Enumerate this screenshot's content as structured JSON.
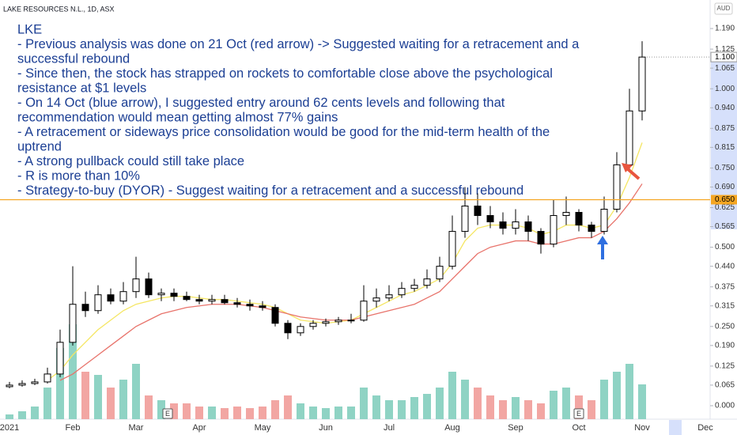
{
  "chart_data": {
    "type": "candlestick",
    "title": "LAKE RESOURCES N.L., 1D, ASX",
    "currency": "AUD",
    "annotation_lines": [
      "LKE",
      "- Previous analysis was done on 21 Oct (red arrow) -> Suggested waiting for a retracement and a",
      "successful rebound",
      "- Since then, the stock has strapped on rockets to comfortable close above the psychological",
      "resistance at $1 levels",
      "- On 14 Oct (blue arrow), I suggested entry around 62 cents levels and following that",
      "recommendation would mean getting almost 77% gains",
      "- A retracement or sideways price consolidation would be good for the mid-term health of the",
      "uptrend",
      "- A strong pullback could still take place",
      "- R is more than 10%",
      "- Strategy-to-buy (DYOR) - Suggest waiting for a retracement and a successful rebound"
    ],
    "categories": [
      "2021",
      null,
      null,
      null,
      null,
      "Feb",
      null,
      null,
      null,
      null,
      "Mar",
      null,
      null,
      null,
      null,
      "Apr",
      null,
      null,
      null,
      null,
      "May",
      null,
      null,
      null,
      null,
      "Jun",
      null,
      null,
      null,
      null,
      "Jul",
      null,
      null,
      null,
      null,
      "Aug",
      null,
      null,
      null,
      null,
      "Sep",
      null,
      null,
      null,
      null,
      "Oct",
      null,
      null,
      null,
      null,
      "Nov",
      null,
      null,
      null,
      null,
      "Dec"
    ],
    "open": [
      0.06,
      0.065,
      0.07,
      0.075,
      0.1,
      0.2,
      0.32,
      0.3,
      0.35,
      0.33,
      0.36,
      0.4,
      0.35,
      0.355,
      0.345,
      0.335,
      0.33,
      0.335,
      0.325,
      0.32,
      0.315,
      0.31,
      0.26,
      0.23,
      0.25,
      0.26,
      0.265,
      0.27,
      0.27,
      0.33,
      0.34,
      0.35,
      0.37,
      0.38,
      0.4,
      0.44,
      0.55,
      0.63,
      0.6,
      0.58,
      0.56,
      0.58,
      0.55,
      0.51,
      0.6,
      0.61,
      0.57,
      0.55,
      0.62,
      0.76,
      0.93,
      null,
      null,
      null,
      null,
      null
    ],
    "high": [
      0.075,
      0.08,
      0.085,
      0.12,
      0.24,
      0.44,
      0.36,
      0.38,
      0.37,
      0.39,
      0.47,
      0.42,
      0.37,
      0.37,
      0.36,
      0.35,
      0.35,
      0.35,
      0.34,
      0.335,
      0.33,
      0.32,
      0.27,
      0.26,
      0.27,
      0.275,
      0.28,
      0.29,
      0.38,
      0.37,
      0.38,
      0.39,
      0.4,
      0.43,
      0.47,
      0.6,
      0.69,
      0.67,
      0.63,
      0.61,
      0.62,
      0.6,
      0.56,
      0.65,
      0.66,
      0.62,
      0.58,
      0.66,
      0.8,
      1.0,
      1.15,
      null,
      null,
      null,
      null,
      null
    ],
    "low": [
      0.055,
      0.06,
      0.065,
      0.07,
      0.09,
      0.19,
      0.28,
      0.29,
      0.32,
      0.32,
      0.34,
      0.34,
      0.33,
      0.33,
      0.33,
      0.32,
      0.32,
      0.32,
      0.31,
      0.3,
      0.3,
      0.25,
      0.21,
      0.22,
      0.24,
      0.25,
      0.255,
      0.26,
      0.265,
      0.31,
      0.33,
      0.34,
      0.36,
      0.37,
      0.39,
      0.43,
      0.53,
      0.57,
      0.56,
      0.54,
      0.54,
      0.52,
      0.48,
      0.5,
      0.57,
      0.55,
      0.53,
      0.54,
      0.61,
      0.74,
      0.9,
      null,
      null,
      null,
      null,
      null
    ],
    "close": [
      0.065,
      0.07,
      0.075,
      0.1,
      0.2,
      0.32,
      0.3,
      0.35,
      0.33,
      0.36,
      0.4,
      0.35,
      0.355,
      0.345,
      0.335,
      0.33,
      0.335,
      0.325,
      0.32,
      0.315,
      0.31,
      0.26,
      0.23,
      0.25,
      0.26,
      0.265,
      0.27,
      0.27,
      0.33,
      0.34,
      0.35,
      0.37,
      0.38,
      0.4,
      0.44,
      0.55,
      0.63,
      0.6,
      0.58,
      0.56,
      0.58,
      0.55,
      0.51,
      0.6,
      0.61,
      0.57,
      0.55,
      0.62,
      0.76,
      0.93,
      1.1,
      null,
      null,
      null,
      null,
      null
    ],
    "volume": [
      3,
      5,
      8,
      20,
      45,
      60,
      30,
      28,
      20,
      25,
      35,
      15,
      12,
      10,
      10,
      8,
      8,
      7,
      8,
      7,
      8,
      12,
      15,
      10,
      8,
      7,
      8,
      8,
      20,
      15,
      12,
      12,
      14,
      16,
      20,
      30,
      25,
      20,
      15,
      12,
      14,
      12,
      10,
      18,
      20,
      15,
      12,
      25,
      30,
      35,
      22,
      null,
      null,
      null,
      null,
      null
    ],
    "up_color": "#ffffff",
    "down_color": "#000000",
    "candle_outline": "#000000",
    "volume_up_color": "#8fd3c4",
    "volume_down_color": "#f2a6a3",
    "series": [
      {
        "color": "#f5e663",
        "values": [
          null,
          null,
          null,
          0.08,
          0.11,
          0.16,
          0.2,
          0.24,
          0.27,
          0.3,
          0.32,
          0.33,
          0.34,
          0.345,
          0.345,
          0.34,
          0.335,
          0.335,
          0.33,
          0.325,
          0.32,
          0.31,
          0.29,
          0.27,
          0.265,
          0.26,
          0.265,
          0.27,
          0.29,
          0.31,
          0.33,
          0.35,
          0.36,
          0.38,
          0.4,
          0.45,
          0.52,
          0.56,
          0.57,
          0.57,
          0.57,
          0.56,
          0.54,
          0.55,
          0.57,
          0.57,
          0.56,
          0.57,
          0.63,
          0.72,
          0.83,
          null,
          null,
          null,
          null,
          null
        ]
      },
      {
        "color": "#e8736b",
        "values": [
          null,
          null,
          null,
          null,
          0.08,
          0.1,
          0.13,
          0.16,
          0.19,
          0.22,
          0.25,
          0.27,
          0.29,
          0.3,
          0.31,
          0.315,
          0.32,
          0.32,
          0.32,
          0.315,
          0.31,
          0.3,
          0.29,
          0.28,
          0.275,
          0.27,
          0.27,
          0.27,
          0.28,
          0.29,
          0.3,
          0.31,
          0.32,
          0.34,
          0.36,
          0.4,
          0.44,
          0.48,
          0.5,
          0.51,
          0.52,
          0.52,
          0.51,
          0.51,
          0.52,
          0.53,
          0.53,
          0.55,
          0.59,
          0.64,
          0.7,
          null,
          null,
          null,
          null,
          null
        ]
      }
    ],
    "ylim": [
      -0.04,
      1.28
    ],
    "yticks": [
      {
        "value": 1.19,
        "label": "1.190"
      },
      1.125,
      1.065,
      {
        "value": 1.0,
        "label": "1.000"
      },
      {
        "value": 0.94,
        "label": "0.940"
      },
      0.875,
      0.815,
      {
        "value": 0.75,
        "label": "0.750"
      },
      {
        "value": 0.69,
        "label": "0.690"
      },
      0.625,
      0.565,
      {
        "value": 0.5,
        "label": "0.500"
      },
      {
        "value": 0.44,
        "label": "0.440"
      },
      0.375,
      0.315,
      {
        "value": 0.25,
        "label": "0.250"
      },
      {
        "value": 0.19,
        "label": "0.190"
      },
      0.125,
      0.065,
      {
        "value": 0,
        "label": "0.000"
      }
    ],
    "horizontal_line": {
      "value": 0.65,
      "label": "0.650",
      "color": "#f5a623"
    },
    "current_price": {
      "value": 1.1,
      "label": "1.100"
    },
    "event_markers": [
      "E",
      "E"
    ]
  }
}
